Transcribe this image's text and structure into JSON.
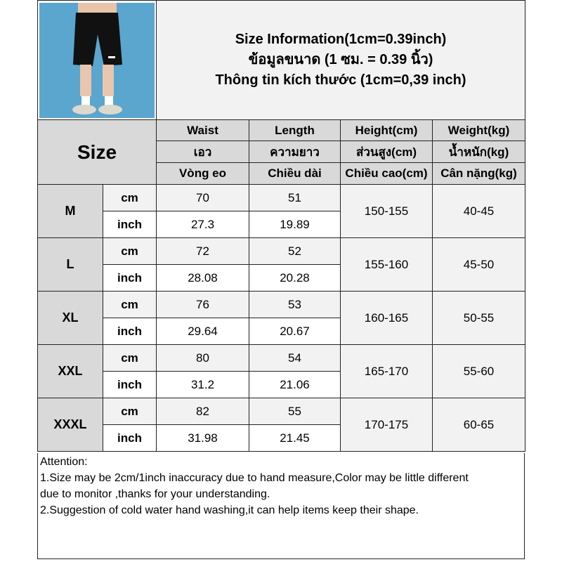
{
  "title": {
    "line1": "Size Information(1cm=0.39inch)",
    "line2": "ข้อมูลขนาด (1 ซม. = 0.39 นิ้ว)",
    "line3": "Thông tin kích thước (1cm=0,39 inch)"
  },
  "product_image": "black-shorts-model-photo",
  "size_header": "Size",
  "columns": [
    {
      "en": "Waist",
      "th": "เอว",
      "vi": "Vòng eo"
    },
    {
      "en": "Length",
      "th": "ความยาว",
      "vi": "Chiều dài"
    },
    {
      "en": "Height(cm)",
      "th": "ส่วนสูง(cm)",
      "vi": "Chiều cao(cm)"
    },
    {
      "en": "Weight(kg)",
      "th": "น้ำหนัก(kg)",
      "vi": "Cân nặng(kg)"
    }
  ],
  "units": {
    "cm": "cm",
    "inch": "inch"
  },
  "sizes": [
    {
      "size": "M",
      "waist_cm": "70",
      "length_cm": "51",
      "waist_in": "27.3",
      "length_in": "19.89",
      "height": "150-155",
      "weight": "40-45"
    },
    {
      "size": "L",
      "waist_cm": "72",
      "length_cm": "52",
      "waist_in": "28.08",
      "length_in": "20.28",
      "height": "155-160",
      "weight": "45-50"
    },
    {
      "size": "XL",
      "waist_cm": "76",
      "length_cm": "53",
      "waist_in": "29.64",
      "length_in": "20.67",
      "height": "160-165",
      "weight": "50-55"
    },
    {
      "size": "XXL",
      "waist_cm": "80",
      "length_cm": "54",
      "waist_in": "31.2",
      "length_in": "21.06",
      "height": "165-170",
      "weight": "55-60"
    },
    {
      "size": "XXXL",
      "waist_cm": "82",
      "length_cm": "55",
      "waist_in": "31.98",
      "length_in": "21.45",
      "height": "170-175",
      "weight": "60-65"
    }
  ],
  "notes": {
    "heading": "Attention:",
    "line1a": "1.Size may be 2cm/1inch inaccuracy due to hand measure,Color may be little different",
    "line1b": "due to monitor ,thanks for your understanding.",
    "line2": "2.Suggestion of cold water hand washing,it can help items keep their shape."
  },
  "colors": {
    "header_bg": "#d9d9d9",
    "cm_row_bg": "#f2f2f2",
    "photo_bg": "#5aa6cf"
  }
}
